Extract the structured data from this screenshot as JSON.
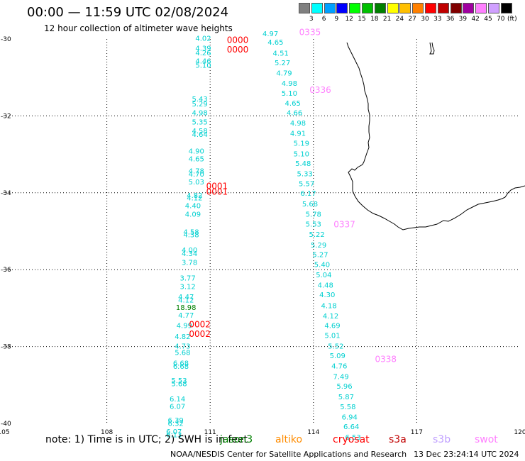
{
  "title": "00:00 — 11:59 UTC 02/08/2024",
  "subtitle": "12 hour collection of altimeter wave heights",
  "legend": {
    "colors": [
      "#808080",
      "#00ffff",
      "#00a0ff",
      "#0000ff",
      "#00ff00",
      "#00c000",
      "#008000",
      "#ffff00",
      "#ffc000",
      "#ff8000",
      "#ff0000",
      "#c00000",
      "#800000",
      "#a000a0",
      "#ff80ff",
      "#d0a0ff",
      "#000000"
    ],
    "labels": [
      "3",
      "6",
      "9",
      "12",
      "15",
      "18",
      "21",
      "24",
      "27",
      "30",
      "33",
      "36",
      "39",
      "42",
      "45",
      "70",
      "(ft)"
    ]
  },
  "axes": {
    "lon_ticks": [
      "105",
      "108",
      "111",
      "114",
      "117",
      "120"
    ],
    "lat_ticks": [
      "-30",
      "-32",
      "-34",
      "-36",
      "-38",
      "-40"
    ]
  },
  "note_text": "note: 1) Time is in UTC; 2) SWH is in feet",
  "satellites": [
    {
      "name": "jason3",
      "color": "#008000"
    },
    {
      "name": "altiko",
      "color": "#ff8c00"
    },
    {
      "name": "cryosat",
      "color": "#ff0000"
    },
    {
      "name": "s3a",
      "color": "#c00000"
    },
    {
      "name": "s3b",
      "color": "#c0a0ff"
    },
    {
      "name": "swot",
      "color": "#ff80ff"
    }
  ],
  "credit": "NOAA/NESDIS Center for Satellite Applications and Research",
  "timestamp": "13 Dec 23:24:14 UTC 2024",
  "track_labels": [
    {
      "text": "0335",
      "color": "#ff80ff",
      "lon": 113.9,
      "lat": -29.9
    },
    {
      "text": "0336",
      "color": "#ff80ff",
      "lon": 114.2,
      "lat": -31.4
    },
    {
      "text": "0337",
      "color": "#ff80ff",
      "lon": 114.9,
      "lat": -34.9
    },
    {
      "text": "0338",
      "color": "#ff80ff",
      "lon": 116.1,
      "lat": -38.4
    },
    {
      "text": "0000",
      "color": "#ff0000",
      "lon": 111.8,
      "lat": -30.1
    },
    {
      "text": "0000",
      "color": "#ff0000",
      "lon": 111.8,
      "lat": -30.35
    },
    {
      "text": "0001",
      "color": "#ff0000",
      "lon": 111.2,
      "lat": -33.9
    },
    {
      "text": "0001",
      "color": "#ff0000",
      "lon": 111.2,
      "lat": -34.05
    },
    {
      "text": "0002",
      "color": "#ff0000",
      "lon": 110.7,
      "lat": -37.5
    },
    {
      "text": "0002",
      "color": "#ff0000",
      "lon": 110.7,
      "lat": -37.75
    }
  ],
  "observations": [
    {
      "v": "4.97",
      "lon": 112.75,
      "lat": -29.93,
      "c": "#00d0d0"
    },
    {
      "v": "4.65",
      "lon": 112.9,
      "lat": -30.15,
      "c": "#00d0d0"
    },
    {
      "v": "4.51",
      "lon": 113.05,
      "lat": -30.43,
      "c": "#00d0d0"
    },
    {
      "v": "5.27",
      "lon": 113.1,
      "lat": -30.68,
      "c": "#00d0d0"
    },
    {
      "v": "4.79",
      "lon": 113.15,
      "lat": -30.95,
      "c": "#00d0d0"
    },
    {
      "v": "4.98",
      "lon": 113.3,
      "lat": -31.22,
      "c": "#00d0d0"
    },
    {
      "v": "5.10",
      "lon": 113.3,
      "lat": -31.48,
      "c": "#00d0d0"
    },
    {
      "v": "4.65",
      "lon": 113.4,
      "lat": -31.73,
      "c": "#00d0d0"
    },
    {
      "v": "4.66",
      "lon": 113.45,
      "lat": -31.98,
      "c": "#00d0d0"
    },
    {
      "v": "4.98",
      "lon": 113.55,
      "lat": -32.25,
      "c": "#00d0d0"
    },
    {
      "v": "4.91",
      "lon": 113.55,
      "lat": -32.52,
      "c": "#00d0d0"
    },
    {
      "v": "5.19",
      "lon": 113.65,
      "lat": -32.78,
      "c": "#00d0d0"
    },
    {
      "v": "5.10",
      "lon": 113.65,
      "lat": -33.05,
      "c": "#00d0d0"
    },
    {
      "v": "5.48",
      "lon": 113.7,
      "lat": -33.3,
      "c": "#00d0d0"
    },
    {
      "v": "5.33",
      "lon": 113.75,
      "lat": -33.57,
      "c": "#00d0d0"
    },
    {
      "v": "5.57",
      "lon": 113.8,
      "lat": -33.83,
      "c": "#00d0d0"
    },
    {
      "v": "6.17",
      "lon": 113.85,
      "lat": -34.08,
      "c": "#00d0d0"
    },
    {
      "v": "5.68",
      "lon": 113.9,
      "lat": -34.35,
      "c": "#00d0d0"
    },
    {
      "v": "5.78",
      "lon": 114.0,
      "lat": -34.62,
      "c": "#00d0d0"
    },
    {
      "v": "5.53",
      "lon": 114.0,
      "lat": -34.88,
      "c": "#00d0d0"
    },
    {
      "v": "5.22",
      "lon": 114.1,
      "lat": -35.15,
      "c": "#00d0d0"
    },
    {
      "v": "5.29",
      "lon": 114.15,
      "lat": -35.42,
      "c": "#00d0d0"
    },
    {
      "v": "5.27",
      "lon": 114.2,
      "lat": -35.67,
      "c": "#00d0d0"
    },
    {
      "v": "5.40",
      "lon": 114.25,
      "lat": -35.93,
      "c": "#00d0d0"
    },
    {
      "v": "5.04",
      "lon": 114.3,
      "lat": -36.2,
      "c": "#00d0d0"
    },
    {
      "v": "4.48",
      "lon": 114.35,
      "lat": -36.47,
      "c": "#00d0d0"
    },
    {
      "v": "4.30",
      "lon": 114.4,
      "lat": -36.72,
      "c": "#00d0d0"
    },
    {
      "v": "4.18",
      "lon": 114.45,
      "lat": -37.0,
      "c": "#00d0d0"
    },
    {
      "v": "4.12",
      "lon": 114.5,
      "lat": -37.27,
      "c": "#00d0d0"
    },
    {
      "v": "4.69",
      "lon": 114.55,
      "lat": -37.52,
      "c": "#00d0d0"
    },
    {
      "v": "5.01",
      "lon": 114.55,
      "lat": -37.78,
      "c": "#00d0d0"
    },
    {
      "v": "5.52",
      "lon": 114.65,
      "lat": -38.05,
      "c": "#00d0d0"
    },
    {
      "v": "5.09",
      "lon": 114.7,
      "lat": -38.3,
      "c": "#00d0d0"
    },
    {
      "v": "4.76",
      "lon": 114.75,
      "lat": -38.57,
      "c": "#00d0d0"
    },
    {
      "v": "7.49",
      "lon": 114.8,
      "lat": -38.85,
      "c": "#00d0d0"
    },
    {
      "v": "5.96",
      "lon": 114.9,
      "lat": -39.1,
      "c": "#00d0d0"
    },
    {
      "v": "5.87",
      "lon": 114.95,
      "lat": -39.37,
      "c": "#00d0d0"
    },
    {
      "v": "5.58",
      "lon": 115.0,
      "lat": -39.63,
      "c": "#00d0d0"
    },
    {
      "v": "6.94",
      "lon": 115.05,
      "lat": -39.9,
      "c": "#00d0d0"
    },
    {
      "v": "6.64",
      "lon": 115.1,
      "lat": -40.15,
      "c": "#00d0d0"
    },
    {
      "v": "6.53",
      "lon": 115.15,
      "lat": -40.42,
      "c": "#00d0d0"
    },
    {
      "v": "4.02",
      "lon": 110.8,
      "lat": -30.05,
      "c": "#00d0d0"
    },
    {
      "v": "4.39",
      "lon": 110.8,
      "lat": -30.3,
      "c": "#00d0d0"
    },
    {
      "v": "4.26",
      "lon": 110.8,
      "lat": -30.42,
      "c": "#00d0d0"
    },
    {
      "v": "4.46",
      "lon": 110.8,
      "lat": -30.64,
      "c": "#00d0d0"
    },
    {
      "v": "5.10",
      "lon": 110.8,
      "lat": -30.75,
      "c": "#00d0d0"
    },
    {
      "v": "5.43",
      "lon": 110.7,
      "lat": -31.62,
      "c": "#00d0d0"
    },
    {
      "v": "5.29",
      "lon": 110.7,
      "lat": -31.75,
      "c": "#00d0d0"
    },
    {
      "v": "4.98",
      "lon": 110.7,
      "lat": -31.98,
      "c": "#00d0d0"
    },
    {
      "v": "5.35",
      "lon": 110.7,
      "lat": -32.22,
      "c": "#00d0d0"
    },
    {
      "v": "4.58",
      "lon": 110.7,
      "lat": -32.45,
      "c": "#00d0d0"
    },
    {
      "v": "4.64",
      "lon": 110.7,
      "lat": -32.55,
      "c": "#00d0d0"
    },
    {
      "v": "4.90",
      "lon": 110.6,
      "lat": -32.98,
      "c": "#00d0d0"
    },
    {
      "v": "4.65",
      "lon": 110.6,
      "lat": -33.18,
      "c": "#00d0d0"
    },
    {
      "v": "4.78",
      "lon": 110.6,
      "lat": -33.5,
      "c": "#00d0d0"
    },
    {
      "v": "4.70",
      "lon": 110.6,
      "lat": -33.58,
      "c": "#00d0d0"
    },
    {
      "v": "5.03",
      "lon": 110.6,
      "lat": -33.78,
      "c": "#00d0d0"
    },
    {
      "v": "4.82",
      "lon": 110.55,
      "lat": -34.13,
      "c": "#00d0d0"
    },
    {
      "v": "4.12",
      "lon": 110.55,
      "lat": -34.2,
      "c": "#00d0d0"
    },
    {
      "v": "4.40",
      "lon": 110.5,
      "lat": -34.4,
      "c": "#00d0d0"
    },
    {
      "v": "4.09",
      "lon": 110.5,
      "lat": -34.62,
      "c": "#00d0d0"
    },
    {
      "v": "4.58",
      "lon": 110.45,
      "lat": -35.08,
      "c": "#00d0d0"
    },
    {
      "v": "4.38",
      "lon": 110.45,
      "lat": -35.16,
      "c": "#00d0d0"
    },
    {
      "v": "4.00",
      "lon": 110.4,
      "lat": -35.55,
      "c": "#00d0d0"
    },
    {
      "v": "4.34",
      "lon": 110.4,
      "lat": -35.65,
      "c": "#00d0d0"
    },
    {
      "v": "3.78",
      "lon": 110.4,
      "lat": -35.88,
      "c": "#00d0d0"
    },
    {
      "v": "3.77",
      "lon": 110.35,
      "lat": -36.28,
      "c": "#00d0d0"
    },
    {
      "v": "3.12",
      "lon": 110.35,
      "lat": -36.5,
      "c": "#00d0d0"
    },
    {
      "v": "4.47",
      "lon": 110.3,
      "lat": -36.77,
      "c": "#00d0d0"
    },
    {
      "v": "4.12",
      "lon": 110.3,
      "lat": -36.85,
      "c": "#00d0d0"
    },
    {
      "v": "18.98",
      "lon": 110.3,
      "lat": -37.05,
      "c": "#008000"
    },
    {
      "v": "4.77",
      "lon": 110.3,
      "lat": -37.25,
      "c": "#00d0d0"
    },
    {
      "v": "4.99",
      "lon": 110.25,
      "lat": -37.52,
      "c": "#00d0d0"
    },
    {
      "v": "4.82",
      "lon": 110.2,
      "lat": -37.8,
      "c": "#00d0d0"
    },
    {
      "v": "4.73",
      "lon": 110.2,
      "lat": -38.05,
      "c": "#00d0d0"
    },
    {
      "v": "5.68",
      "lon": 110.2,
      "lat": -38.22,
      "c": "#00d0d0"
    },
    {
      "v": "6.68",
      "lon": 110.15,
      "lat": -38.5,
      "c": "#00d0d0"
    },
    {
      "v": "6.68",
      "lon": 110.15,
      "lat": -38.58,
      "c": "#00d0d0"
    },
    {
      "v": "5.53",
      "lon": 110.1,
      "lat": -38.95,
      "c": "#00d0d0"
    },
    {
      "v": "5.68",
      "lon": 110.1,
      "lat": -39.03,
      "c": "#00d0d0"
    },
    {
      "v": "6.14",
      "lon": 110.05,
      "lat": -39.43,
      "c": "#00d0d0"
    },
    {
      "v": "6.07",
      "lon": 110.05,
      "lat": -39.62,
      "c": "#00d0d0"
    },
    {
      "v": "6.39",
      "lon": 110.0,
      "lat": -39.98,
      "c": "#00d0d0"
    },
    {
      "v": "6.32",
      "lon": 110.0,
      "lat": -40.06,
      "c": "#00d0d0"
    },
    {
      "v": "6.07",
      "lon": 109.95,
      "lat": -40.28,
      "c": "#00d0d0"
    },
    {
      "v": "6.13",
      "lon": 109.95,
      "lat": -40.36,
      "c": "#00d0d0"
    }
  ]
}
